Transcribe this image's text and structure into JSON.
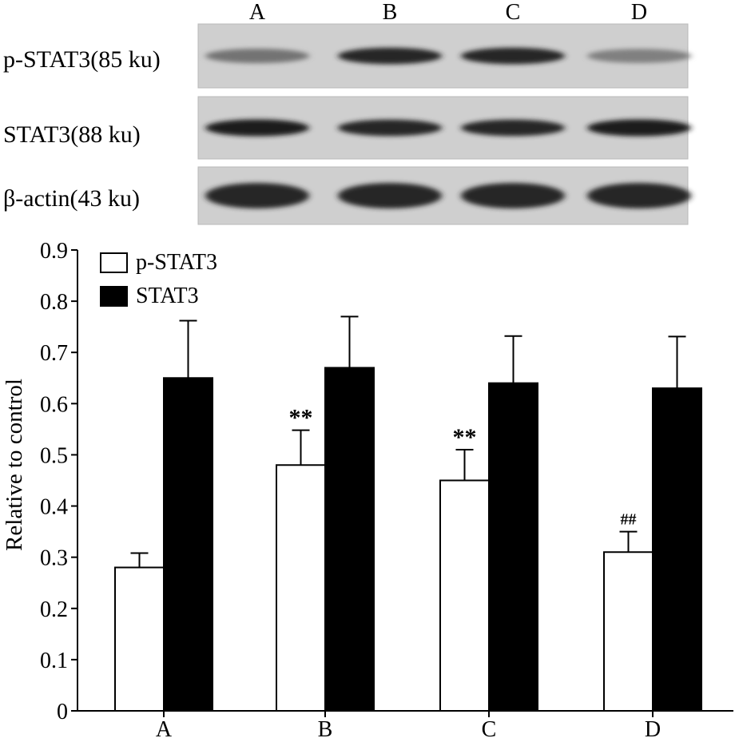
{
  "blot": {
    "lanes": [
      "A",
      "B",
      "C",
      "D"
    ],
    "rows": [
      {
        "label": "p-STAT3(85 ku)",
        "intensity": [
          0.55,
          0.85,
          0.85,
          0.5
        ]
      },
      {
        "label": "STAT3(88 ku)",
        "intensity": [
          0.9,
          0.85,
          0.85,
          0.9
        ]
      },
      {
        "label": "β-actin(43 ku)",
        "intensity": [
          0.85,
          0.85,
          0.85,
          0.85
        ]
      }
    ]
  },
  "chart_data": {
    "type": "bar",
    "categories": [
      "A",
      "B",
      "C",
      "D"
    ],
    "series": [
      {
        "name": "p-STAT3",
        "values": [
          0.28,
          0.48,
          0.45,
          0.31
        ],
        "errors": [
          0.028,
          0.068,
          0.06,
          0.04
        ],
        "fill": "#ffffff"
      },
      {
        "name": "STAT3",
        "values": [
          0.65,
          0.67,
          0.64,
          0.63
        ],
        "errors": [
          0.112,
          0.1,
          0.092,
          0.101
        ],
        "fill": "#000000"
      }
    ],
    "annotations": [
      {
        "category": "B",
        "series": "p-STAT3",
        "text": "**"
      },
      {
        "category": "C",
        "series": "p-STAT3",
        "text": "**"
      },
      {
        "category": "D",
        "series": "p-STAT3",
        "text": "##"
      }
    ],
    "ylabel": "Relative to control",
    "xlabel": "",
    "ylim": [
      0,
      0.9
    ],
    "yticks": [
      "0",
      "0.1",
      "0.2",
      "0.3",
      "0.4",
      "0.5",
      "0.6",
      "0.7",
      "0.8",
      "0.9"
    ],
    "legend": "top-left",
    "grid": false
  }
}
